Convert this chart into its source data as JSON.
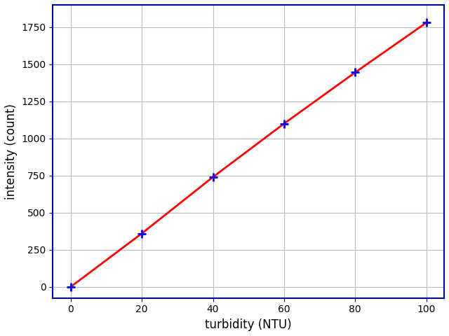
{
  "x": [
    0,
    20,
    40,
    60,
    80,
    100
  ],
  "y": [
    0,
    360,
    740,
    1100,
    1445,
    1780
  ],
  "line_color": "#ff0000",
  "marker_color": "#0000ff",
  "marker_style": "+",
  "marker_size": 8,
  "marker_linewidth": 2,
  "line_width": 2,
  "xlabel": "turbidity (NTU)",
  "ylabel": "intensity (count)",
  "xlim": [
    -5,
    105
  ],
  "ylim": [
    -75,
    1900
  ],
  "xticks": [
    0,
    20,
    40,
    60,
    80,
    100
  ],
  "yticks": [
    0,
    250,
    500,
    750,
    1000,
    1250,
    1500,
    1750
  ],
  "grid": true,
  "grid_color": "#bbbbbb",
  "background_color": "#ffffff",
  "spine_color": "#0000aa",
  "tick_color": "#0000aa",
  "label_fontsize": 12
}
